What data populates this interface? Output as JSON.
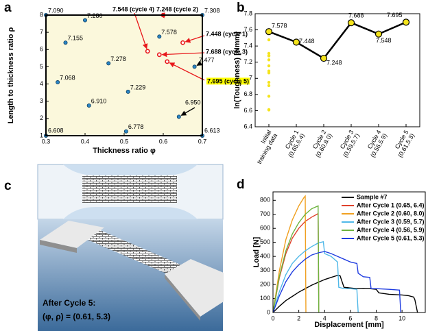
{
  "chart_data": [
    {
      "type": "scatter",
      "panel_label": "a",
      "xlabel": "Thickness ratio φ",
      "ylabel": "Length to thickness ratio ρ",
      "xlim": [
        0.3,
        0.7
      ],
      "ylim": [
        1,
        8
      ],
      "xticks": [
        0.3,
        0.4,
        0.5,
        0.6,
        0.7
      ],
      "yticks": [
        1,
        2,
        3,
        4,
        5,
        6,
        7,
        8
      ],
      "background": "#fbf8dc",
      "highlight_color": "#ffff00",
      "series": [
        {
          "color": "#2b86c5",
          "label_color": "#000000",
          "x": [
            0.3,
            0.4,
            0.35,
            0.46,
            0.33,
            0.41,
            0.51,
            0.3,
            0.505,
            0.64,
            0.68,
            0.7,
            0.59,
            0.7
          ],
          "values": [
            8,
            7.7,
            6.4,
            5.2,
            4.1,
            2.75,
            3.55,
            1,
            1.25,
            2.1,
            5.0,
            8,
            6.75,
            1
          ],
          "point_labels": [
            "7.090",
            "7.280",
            "7.155",
            "7.278",
            "7.068",
            "6.910",
            "7.229",
            "6.608",
            "6.778",
            "6.950",
            "7.477",
            "7.308",
            "7.578",
            "6.613"
          ]
        },
        {
          "color": "#e8191c",
          "label_color": "#e8191c",
          "highlighted_point": 4,
          "x": [
            0.65,
            0.6,
            0.59,
            0.56,
            0.61
          ],
          "values": [
            6.4,
            8.0,
            5.7,
            5.9,
            5.3
          ],
          "point_labels": [
            "7.448 (cycle 1)",
            "7.248 (cycle 2)",
            "7.688 (cycle 3)",
            "7.548 (cycle 4)",
            "7.695 (cycle 5)"
          ]
        }
      ]
    },
    {
      "type": "line",
      "panel_label": "b",
      "ylabel": "ln(Toughness) [Nmm]",
      "categories": [
        "Initial",
        "Cycle 1",
        "Cycle 2",
        "Cycle 3",
        "Cycle 4",
        "Cycle 5"
      ],
      "category_notes": [
        "training data",
        "(0.65,6.4)",
        "(0.60,8.0)",
        "(0.59,5.7)",
        "(0.56,5.9)",
        "(0.61,5.3)"
      ],
      "ylim": [
        6.4,
        7.8
      ],
      "yticks": [
        6.4,
        6.6,
        6.8,
        7,
        7.2,
        7.4,
        7.6,
        7.8
      ],
      "values": [
        7.578,
        7.448,
        7.248,
        7.688,
        7.548,
        7.695
      ],
      "value_labels": [
        "7.578",
        "7.448",
        "7.248",
        "7.688",
        "7.548",
        "7.695"
      ],
      "color": "#000000",
      "marker_color": "#f5e41c",
      "initial_values": [
        7.09,
        7.28,
        7.155,
        7.278,
        7.068,
        6.91,
        7.229,
        6.608,
        6.778,
        6.95,
        7.477,
        7.308,
        7.578,
        6.613
      ]
    },
    {
      "type": "line",
      "panel_label": "d",
      "xlabel": "Displacement [mm]",
      "ylabel": "Load [N]",
      "xlim": [
        0,
        11.8
      ],
      "ylim": [
        0,
        860
      ],
      "xticks": [
        0,
        2,
        4,
        6,
        8,
        10
      ],
      "yticks": [
        0,
        100,
        200,
        300,
        400,
        500,
        600,
        700,
        800
      ],
      "legend": "upper right",
      "series": [
        {
          "name": "Sample #7",
          "color": "#000000",
          "x": [
            0,
            0.5,
            1,
            1.5,
            2,
            2.5,
            3,
            3.5,
            4,
            4.5,
            5,
            5.2,
            5.5,
            6,
            6.5,
            7,
            7.5,
            8,
            8.2,
            9,
            10,
            10.5,
            10.9,
            11,
            11.2
          ],
          "values": [
            0,
            45,
            85,
            115,
            145,
            170,
            195,
            215,
            235,
            250,
            265,
            262,
            180,
            175,
            170,
            172,
            170,
            165,
            140,
            130,
            125,
            120,
            110,
            90,
            0
          ]
        },
        {
          "name": "After Cycle 1 (0.65, 6.4)",
          "color": "#e0412c",
          "x": [
            0,
            0.5,
            1,
            1.5,
            2,
            2.5,
            3,
            3.5,
            3.55
          ],
          "values": [
            0,
            250,
            420,
            530,
            600,
            650,
            680,
            705,
            0
          ]
        },
        {
          "name": "After Cycle 2 (0.60, 8.0)",
          "color": "#f0a020",
          "x": [
            0,
            0.5,
            1,
            1.5,
            2,
            2.4,
            2.5,
            2.55
          ],
          "values": [
            0,
            300,
            520,
            660,
            760,
            820,
            830,
            0
          ]
        },
        {
          "name": "After Cycle 3 (0.59, 5.7)",
          "color": "#4fb8e8",
          "x": [
            0,
            0.5,
            1,
            1.5,
            2,
            2.5,
            3,
            3.5,
            3.9,
            4,
            4.5,
            5,
            5.1,
            5.5,
            6,
            6.5,
            6.6
          ],
          "values": [
            0,
            150,
            270,
            350,
            400,
            440,
            470,
            495,
            505,
            420,
            400,
            360,
            180,
            170,
            170,
            165,
            0
          ]
        },
        {
          "name": "After Cycle 4 (0.56, 5.9)",
          "color": "#6db33f",
          "x": [
            0,
            0.5,
            1,
            1.5,
            2,
            2.5,
            3,
            3.5,
            3.55
          ],
          "values": [
            0,
            260,
            440,
            560,
            640,
            700,
            740,
            760,
            0
          ]
        },
        {
          "name": "After Cycle 5 (0.61, 5.3)",
          "color": "#1f3ce0",
          "x": [
            0,
            0.5,
            1,
            1.5,
            2,
            2.5,
            3,
            3.5,
            4,
            4.5,
            5,
            5.5,
            6,
            6.5,
            6.6,
            7,
            7.5,
            7.6,
            8,
            9,
            9.8,
            9.9
          ],
          "values": [
            0,
            120,
            220,
            290,
            340,
            380,
            410,
            425,
            435,
            420,
            400,
            380,
            360,
            350,
            280,
            255,
            250,
            170,
            170,
            165,
            160,
            0
          ]
        }
      ]
    }
  ],
  "illustration": {
    "panel_label": "c",
    "caption": "After Cycle 5:",
    "parameters": "(φ, ρ) = (0.61, 5.3)"
  }
}
